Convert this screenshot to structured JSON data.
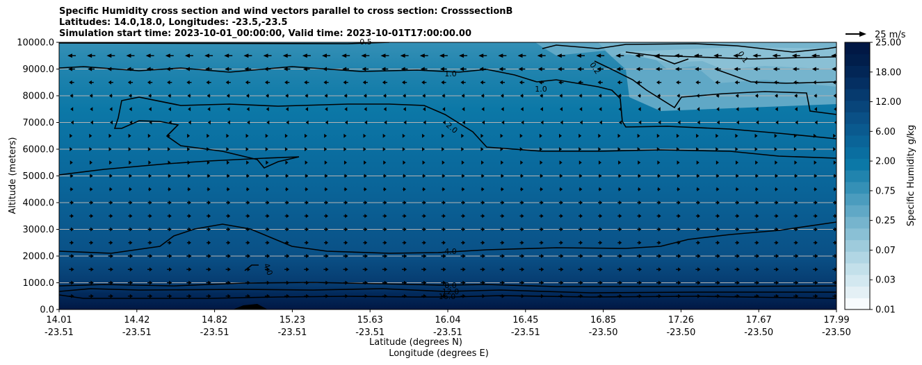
{
  "chart_data": {
    "type": "contour",
    "title_lines": [
      "Specific Humidity cross section and wind vectors parallel to cross section: CrosssectionB",
      "Latitudes: 14.0,18.0, Longitudes: -23.5,-23.5",
      "Simulation start time: 2023-10-01_00:00:00, Valid time: 2023-10-01T17:00:00.00"
    ],
    "ylabel": "Altitude (meters)",
    "xlabel_lat": "Latitude (degrees N)",
    "xlabel_lon": "Longitude (degrees E)",
    "ylim": [
      0,
      10000
    ],
    "yticks": [
      "0.0",
      "1000.0",
      "2000.0",
      "3000.0",
      "4000.0",
      "5000.0",
      "6000.0",
      "7000.0",
      "8000.0",
      "9000.0",
      "10000.0"
    ],
    "xticks": [
      {
        "lat": "14.01",
        "lon": "-23.51"
      },
      {
        "lat": "14.42",
        "lon": "-23.51"
      },
      {
        "lat": "14.82",
        "lon": "-23.51"
      },
      {
        "lat": "15.23",
        "lon": "-23.51"
      },
      {
        "lat": "15.63",
        "lon": "-23.51"
      },
      {
        "lat": "16.04",
        "lon": "-23.51"
      },
      {
        "lat": "16.45",
        "lon": "-23.51"
      },
      {
        "lat": "16.85",
        "lon": "-23.50"
      },
      {
        "lat": "17.26",
        "lon": "-23.50"
      },
      {
        "lat": "17.67",
        "lon": "-23.50"
      },
      {
        "lat": "17.99",
        "lon": "-23.50"
      }
    ],
    "colorbar": {
      "label": "Specific Humidity g/kg",
      "ticks": [
        "0.01",
        "0.03",
        "0.07",
        "0.25",
        "0.75",
        "2.00",
        "6.00",
        "12.00",
        "18.00",
        "25.00"
      ],
      "colors": [
        "#f7fbfd",
        "#e4f0f5",
        "#d3e8f0",
        "#c3e0ea",
        "#b1d6e4",
        "#9ecbdc",
        "#8ac0d5",
        "#76b4cd",
        "#60a8c6",
        "#4b9cbe",
        "#3590b6",
        "#2184ae",
        "#0c78a7",
        "#0a6ea0",
        "#0a6498",
        "#0a5a8f",
        "#0a5086",
        "#08457a",
        "#063a6e",
        "#042f62",
        "#022656",
        "#011e4b",
        "#011845"
      ]
    },
    "wind_key": {
      "label": "25 m/s",
      "speed": 25
    },
    "contour_labels": [
      "0.1",
      "0.2",
      "0.5",
      "1.0",
      "1.0",
      "2.0",
      "4.0",
      "4.0",
      "8.0",
      "12.0",
      "16.0"
    ],
    "wind_levels_m": [
      500,
      1000,
      1500,
      2000,
      2500,
      3000,
      3500,
      4000,
      4500,
      5000,
      5500,
      6000,
      6500,
      7000,
      7500,
      8000,
      8500,
      9000,
      9500
    ],
    "wind_u_by_level": [
      6,
      6,
      6,
      6,
      5,
      5,
      5,
      5,
      4,
      4,
      3,
      2,
      2,
      -2,
      -3,
      -4,
      -6,
      -8,
      -10
    ]
  }
}
